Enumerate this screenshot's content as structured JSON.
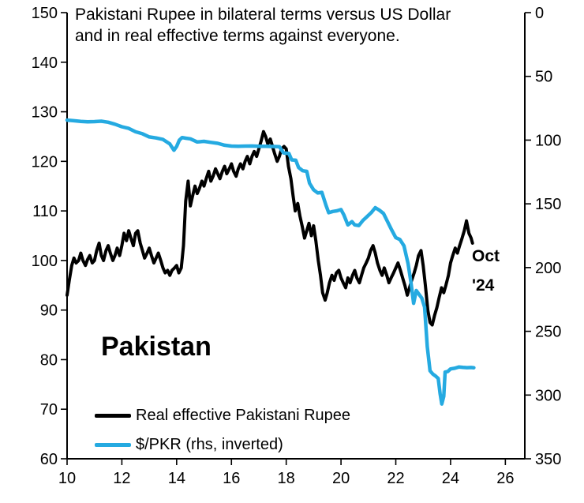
{
  "title": {
    "line1": "Pakistani Rupee in bilateral terms versus US Dollar",
    "line2": "and in real effective terms against everyone."
  },
  "country_label": "Pakistan",
  "annotation": {
    "line1": "Oct",
    "line2": "'24"
  },
  "legend": [
    {
      "label": "Real effective Pakistani Rupee",
      "color": "#000000",
      "thickness": 5
    },
    {
      "label": "$/PKR (rhs, inverted)",
      "color": "#25aae1",
      "thickness": 5
    }
  ],
  "chart_data": {
    "type": "line",
    "title": "Pakistani Rupee in bilateral terms versus US Dollar and in real effective terms against everyone.",
    "xlabel": "",
    "ylabel": "",
    "x_ticks": [
      10,
      12,
      14,
      16,
      18,
      20,
      22,
      24,
      26
    ],
    "x_range": [
      10,
      26.71
    ],
    "left_axis": {
      "min": 60,
      "max": 150,
      "ticks": [
        60,
        70,
        80,
        90,
        100,
        110,
        120,
        130,
        140,
        150
      ]
    },
    "right_axis": {
      "min": 0,
      "max": 350,
      "inverted": true,
      "ticks": [
        0,
        50,
        100,
        150,
        200,
        250,
        300,
        350
      ]
    },
    "grid": false,
    "legend_position": "bottom-left-inside",
    "series": [
      {
        "name": "Real effective Pakistani Rupee",
        "axis": "left",
        "color": "#000000",
        "width": 4,
        "points": [
          [
            10.0,
            93
          ],
          [
            10.08,
            96
          ],
          [
            10.17,
            99
          ],
          [
            10.25,
            100.5
          ],
          [
            10.33,
            99.5
          ],
          [
            10.42,
            100
          ],
          [
            10.5,
            101.5
          ],
          [
            10.58,
            100
          ],
          [
            10.67,
            99
          ],
          [
            10.75,
            100.2
          ],
          [
            10.83,
            101
          ],
          [
            10.92,
            99.5
          ],
          [
            11.0,
            100
          ],
          [
            11.08,
            102
          ],
          [
            11.17,
            103.5
          ],
          [
            11.25,
            101
          ],
          [
            11.33,
            100
          ],
          [
            11.42,
            102
          ],
          [
            11.5,
            103
          ],
          [
            11.58,
            101.5
          ],
          [
            11.67,
            100
          ],
          [
            11.75,
            101
          ],
          [
            11.83,
            102.5
          ],
          [
            11.92,
            101
          ],
          [
            12.0,
            103
          ],
          [
            12.08,
            105.5
          ],
          [
            12.17,
            104
          ],
          [
            12.25,
            106
          ],
          [
            12.33,
            104.5
          ],
          [
            12.42,
            103
          ],
          [
            12.5,
            105.5
          ],
          [
            12.58,
            106
          ],
          [
            12.67,
            103.5
          ],
          [
            12.75,
            102
          ],
          [
            12.83,
            100.5
          ],
          [
            12.92,
            101.5
          ],
          [
            13.0,
            102.5
          ],
          [
            13.08,
            101
          ],
          [
            13.17,
            99.5
          ],
          [
            13.25,
            100.5
          ],
          [
            13.33,
            101.5
          ],
          [
            13.42,
            100
          ],
          [
            13.5,
            98.5
          ],
          [
            13.58,
            97.5
          ],
          [
            13.67,
            98
          ],
          [
            13.75,
            97
          ],
          [
            13.83,
            98
          ],
          [
            13.92,
            98.5
          ],
          [
            14.0,
            99
          ],
          [
            14.08,
            97.5
          ],
          [
            14.17,
            98.5
          ],
          [
            14.25,
            103
          ],
          [
            14.33,
            112
          ],
          [
            14.42,
            116
          ],
          [
            14.5,
            111
          ],
          [
            14.58,
            113
          ],
          [
            14.67,
            115
          ],
          [
            14.75,
            113.5
          ],
          [
            14.83,
            114.5
          ],
          [
            14.92,
            116
          ],
          [
            15.0,
            115
          ],
          [
            15.08,
            116.5
          ],
          [
            15.17,
            118
          ],
          [
            15.25,
            116
          ],
          [
            15.33,
            117
          ],
          [
            15.42,
            118.5
          ],
          [
            15.5,
            117.5
          ],
          [
            15.58,
            116.5
          ],
          [
            15.67,
            118
          ],
          [
            15.75,
            119
          ],
          [
            15.83,
            117.5
          ],
          [
            15.92,
            118.5
          ],
          [
            16.0,
            119.5
          ],
          [
            16.08,
            118
          ],
          [
            16.17,
            117
          ],
          [
            16.25,
            118.5
          ],
          [
            16.33,
            119.5
          ],
          [
            16.42,
            118.5
          ],
          [
            16.5,
            120
          ],
          [
            16.58,
            121
          ],
          [
            16.67,
            119.5
          ],
          [
            16.75,
            121
          ],
          [
            16.83,
            122
          ],
          [
            16.92,
            121
          ],
          [
            17.0,
            122.5
          ],
          [
            17.08,
            124
          ],
          [
            17.17,
            126
          ],
          [
            17.25,
            125
          ],
          [
            17.33,
            123.5
          ],
          [
            17.42,
            124.5
          ],
          [
            17.5,
            123
          ],
          [
            17.58,
            121.5
          ],
          [
            17.67,
            120
          ],
          [
            17.75,
            121
          ],
          [
            17.83,
            122.5
          ],
          [
            17.92,
            123
          ],
          [
            18.0,
            122.5
          ],
          [
            18.08,
            119
          ],
          [
            18.17,
            116.5
          ],
          [
            18.25,
            113
          ],
          [
            18.33,
            110
          ],
          [
            18.42,
            111.5
          ],
          [
            18.5,
            109
          ],
          [
            18.58,
            107
          ],
          [
            18.67,
            104.5
          ],
          [
            18.75,
            106
          ],
          [
            18.83,
            107.5
          ],
          [
            18.92,
            105
          ],
          [
            19.0,
            107
          ],
          [
            19.08,
            104
          ],
          [
            19.17,
            100
          ],
          [
            19.25,
            97
          ],
          [
            19.33,
            93.5
          ],
          [
            19.42,
            92
          ],
          [
            19.5,
            93.5
          ],
          [
            19.58,
            95.5
          ],
          [
            19.67,
            97
          ],
          [
            19.75,
            96
          ],
          [
            19.83,
            97.5
          ],
          [
            19.92,
            98
          ],
          [
            20.0,
            96.5
          ],
          [
            20.08,
            95.5
          ],
          [
            20.17,
            94.5
          ],
          [
            20.25,
            96.5
          ],
          [
            20.33,
            95.5
          ],
          [
            20.42,
            97
          ],
          [
            20.5,
            98
          ],
          [
            20.58,
            96.5
          ],
          [
            20.67,
            95.5
          ],
          [
            20.75,
            97
          ],
          [
            20.83,
            98.5
          ],
          [
            20.92,
            99.5
          ],
          [
            21.0,
            100.5
          ],
          [
            21.08,
            102
          ],
          [
            21.17,
            103
          ],
          [
            21.25,
            101.5
          ],
          [
            21.33,
            99.5
          ],
          [
            21.42,
            98
          ],
          [
            21.5,
            97
          ],
          [
            21.58,
            98.5
          ],
          [
            21.67,
            97
          ],
          [
            21.75,
            95.5
          ],
          [
            21.83,
            96.5
          ],
          [
            21.92,
            97.5
          ],
          [
            22.0,
            98.5
          ],
          [
            22.08,
            99.5
          ],
          [
            22.17,
            98
          ],
          [
            22.25,
            96.5
          ],
          [
            22.33,
            95
          ],
          [
            22.42,
            93
          ],
          [
            22.5,
            94.5
          ],
          [
            22.58,
            96
          ],
          [
            22.67,
            97.5
          ],
          [
            22.75,
            99
          ],
          [
            22.83,
            101
          ],
          [
            22.92,
            102
          ],
          [
            23.0,
            99
          ],
          [
            23.08,
            95
          ],
          [
            23.17,
            90
          ],
          [
            23.25,
            87.5
          ],
          [
            23.33,
            87
          ],
          [
            23.42,
            89
          ],
          [
            23.5,
            90.5
          ],
          [
            23.58,
            92.5
          ],
          [
            23.67,
            94.5
          ],
          [
            23.75,
            93.5
          ],
          [
            23.83,
            95
          ],
          [
            23.92,
            97
          ],
          [
            24.0,
            99.5
          ],
          [
            24.08,
            101
          ],
          [
            24.17,
            102.5
          ],
          [
            24.25,
            101.5
          ],
          [
            24.33,
            103
          ],
          [
            24.42,
            104.5
          ],
          [
            24.5,
            106
          ],
          [
            24.58,
            108
          ],
          [
            24.67,
            105.5
          ],
          [
            24.75,
            104.5
          ],
          [
            24.8,
            103.5
          ]
        ]
      },
      {
        "name": "$/PKR (rhs, inverted)",
        "axis": "right",
        "color": "#25aae1",
        "width": 4.5,
        "points": [
          [
            10.0,
            84.3
          ],
          [
            10.25,
            84.8
          ],
          [
            10.5,
            85.3
          ],
          [
            10.75,
            85.6
          ],
          [
            11.0,
            85.5
          ],
          [
            11.25,
            85.2
          ],
          [
            11.5,
            86
          ],
          [
            11.75,
            87.5
          ],
          [
            12.0,
            89.5
          ],
          [
            12.25,
            90.8
          ],
          [
            12.5,
            93.5
          ],
          [
            12.75,
            95
          ],
          [
            13.0,
            97.5
          ],
          [
            13.25,
            98.3
          ],
          [
            13.5,
            99.5
          ],
          [
            13.75,
            103
          ],
          [
            13.9,
            108
          ],
          [
            14.0,
            105
          ],
          [
            14.1,
            100
          ],
          [
            14.2,
            98
          ],
          [
            14.33,
            98.5
          ],
          [
            14.5,
            99
          ],
          [
            14.75,
            101.5
          ],
          [
            15.0,
            101
          ],
          [
            15.25,
            101.8
          ],
          [
            15.5,
            102.5
          ],
          [
            15.75,
            104
          ],
          [
            16.0,
            104.7
          ],
          [
            16.25,
            104.8
          ],
          [
            16.5,
            104.7
          ],
          [
            16.75,
            104.6
          ],
          [
            17.0,
            104.8
          ],
          [
            17.25,
            104.9
          ],
          [
            17.5,
            105
          ],
          [
            17.75,
            105.2
          ],
          [
            17.9,
            110
          ],
          [
            18.1,
            110.5
          ],
          [
            18.2,
            115.5
          ],
          [
            18.35,
            115.8
          ],
          [
            18.45,
            121.5
          ],
          [
            18.6,
            124
          ],
          [
            18.75,
            124.5
          ],
          [
            18.85,
            133.8
          ],
          [
            19.0,
            139
          ],
          [
            19.15,
            141.5
          ],
          [
            19.3,
            141
          ],
          [
            19.45,
            151
          ],
          [
            19.55,
            157
          ],
          [
            19.7,
            156
          ],
          [
            19.85,
            155.5
          ],
          [
            20.0,
            154.5
          ],
          [
            20.1,
            158.5
          ],
          [
            20.25,
            166.5
          ],
          [
            20.4,
            164
          ],
          [
            20.5,
            166.5
          ],
          [
            20.65,
            167
          ],
          [
            20.8,
            163
          ],
          [
            20.95,
            160
          ],
          [
            21.1,
            157
          ],
          [
            21.25,
            153
          ],
          [
            21.4,
            155
          ],
          [
            21.55,
            157.5
          ],
          [
            21.7,
            164
          ],
          [
            21.85,
            170.5
          ],
          [
            22.0,
            176.5
          ],
          [
            22.15,
            178
          ],
          [
            22.3,
            183
          ],
          [
            22.45,
            197
          ],
          [
            22.55,
            211
          ],
          [
            22.65,
            228
          ],
          [
            22.75,
            218
          ],
          [
            22.85,
            221
          ],
          [
            22.95,
            224
          ],
          [
            23.05,
            231
          ],
          [
            23.15,
            262
          ],
          [
            23.25,
            281
          ],
          [
            23.35,
            283.5
          ],
          [
            23.45,
            285
          ],
          [
            23.55,
            287
          ],
          [
            23.62,
            299
          ],
          [
            23.68,
            307
          ],
          [
            23.75,
            301
          ],
          [
            23.8,
            282
          ],
          [
            23.9,
            281.5
          ],
          [
            24.0,
            279.5
          ],
          [
            24.15,
            279
          ],
          [
            24.3,
            278
          ],
          [
            24.45,
            278.3
          ],
          [
            24.6,
            278.5
          ],
          [
            24.75,
            278.4
          ],
          [
            24.85,
            278.6
          ]
        ]
      }
    ]
  }
}
